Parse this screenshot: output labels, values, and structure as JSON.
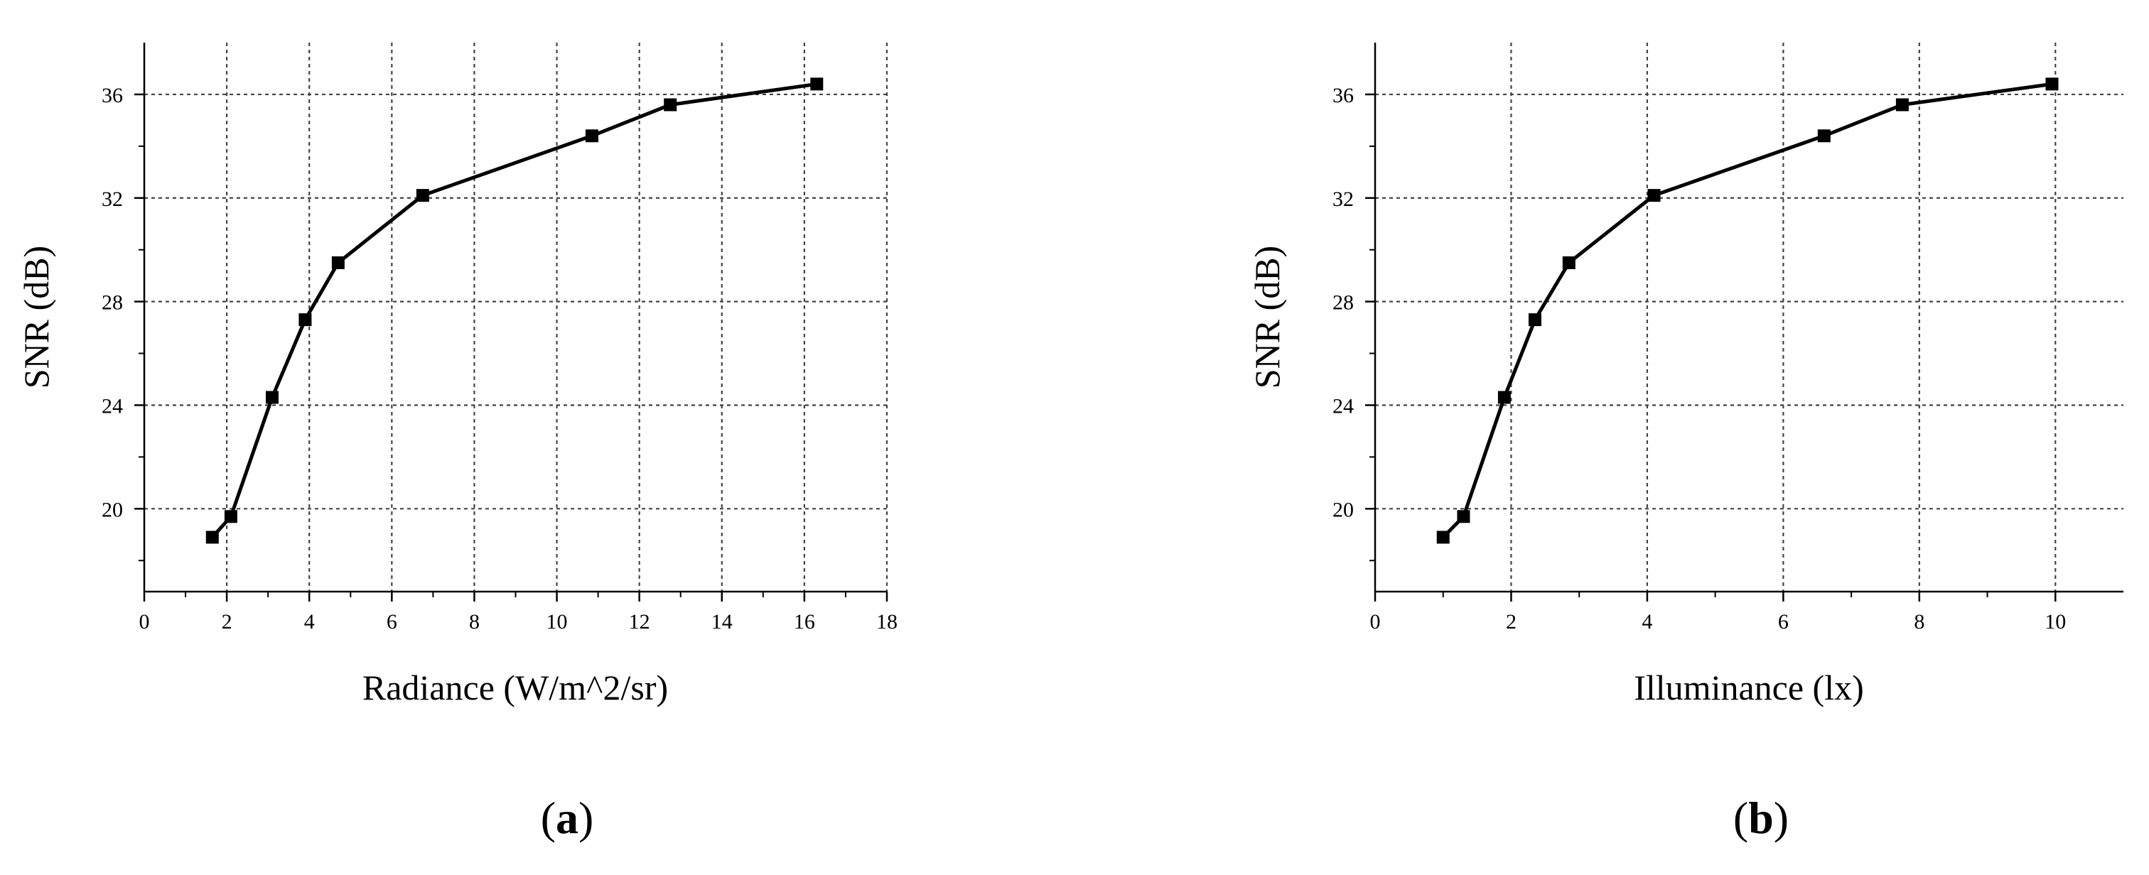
{
  "chart_data": [
    {
      "type": "line",
      "panel_label": "a",
      "xlabel": "Radiance (W/m^2/sr)",
      "ylabel": "SNR (dB)",
      "xlim": [
        0,
        18
      ],
      "ylim": [
        16.8,
        38
      ],
      "x_ticks": [
        0,
        2,
        4,
        6,
        8,
        10,
        12,
        14,
        16,
        18
      ],
      "y_ticks": [
        20,
        24,
        28,
        32,
        36
      ],
      "grid": true,
      "marker": "square",
      "series": [
        {
          "x": [
            1.65,
            2.1,
            3.1,
            3.9,
            4.7,
            6.75,
            10.85,
            12.75,
            16.3
          ],
          "y": [
            18.9,
            19.7,
            24.3,
            27.3,
            29.5,
            32.1,
            34.4,
            35.6,
            36.4
          ]
        }
      ]
    },
    {
      "type": "line",
      "panel_label": "b",
      "xlabel": "Illuminance  (lx)",
      "ylabel": "SNR (dB)",
      "xlim": [
        0,
        11
      ],
      "ylim": [
        16.8,
        38
      ],
      "x_ticks": [
        0,
        2,
        4,
        6,
        8,
        10
      ],
      "y_ticks": [
        20,
        24,
        28,
        32,
        36
      ],
      "grid": true,
      "marker": "square",
      "series": [
        {
          "x": [
            1.0,
            1.3,
            1.9,
            2.35,
            2.85,
            4.1,
            6.6,
            7.75,
            9.95
          ],
          "y": [
            18.9,
            19.7,
            24.3,
            27.3,
            29.5,
            32.1,
            34.4,
            35.6,
            36.4
          ]
        }
      ]
    }
  ]
}
